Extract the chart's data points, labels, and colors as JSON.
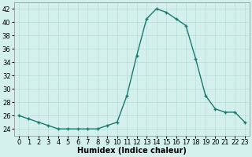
{
  "x": [
    0,
    1,
    2,
    3,
    4,
    5,
    6,
    7,
    8,
    9,
    10,
    11,
    12,
    13,
    14,
    15,
    16,
    17,
    18,
    19,
    20,
    21,
    22,
    23
  ],
  "y": [
    26,
    25.5,
    25,
    24.5,
    24,
    24,
    24,
    24,
    24,
    24.5,
    25,
    29,
    35,
    40.5,
    42,
    41.5,
    40.5,
    39.5,
    34.5,
    29,
    27,
    26.5,
    26.5,
    25
  ],
  "xlabel": "Humidex (Indice chaleur)",
  "xlim": [
    -0.5,
    23.5
  ],
  "ylim": [
    23,
    43
  ],
  "yticks": [
    24,
    26,
    28,
    30,
    32,
    34,
    36,
    38,
    40,
    42
  ],
  "xticks": [
    0,
    1,
    2,
    3,
    4,
    5,
    6,
    7,
    8,
    9,
    10,
    11,
    12,
    13,
    14,
    15,
    16,
    17,
    18,
    19,
    20,
    21,
    22,
    23
  ],
  "line_color": "#1a7a6e",
  "marker": "+",
  "bg_color": "#d4f0ed",
  "grid_color": "#b8ddd9",
  "label_fontsize": 7,
  "tick_fontsize": 6,
  "linewidth": 1.0,
  "markersize": 3,
  "markeredgewidth": 1.0
}
